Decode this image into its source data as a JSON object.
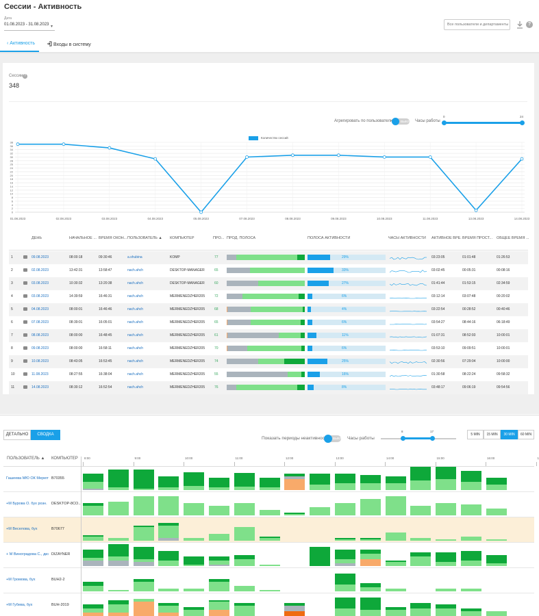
{
  "page": {
    "title": "Сессии - Активность"
  },
  "filters": {
    "date_label": "Дата",
    "date_value": "01.08.2023 - 31.08.2023",
    "users_placeholder": "Все пользователи и департаменты"
  },
  "tabs": [
    {
      "label": "Активность",
      "active": true
    },
    {
      "label": "Входы в систему",
      "active": false
    }
  ],
  "summary": {
    "sessions_label": "Сессии",
    "sessions_value": "348"
  },
  "chart_controls": {
    "aggregate_label": "Агрегировать по пользователю",
    "aggregate_toggle": "ВЫКЛ",
    "work_hours_label": "Часы работы",
    "hours_min": "0",
    "hours_max": "24"
  },
  "chart_data": {
    "type": "line",
    "series": [
      {
        "name": "Количество сессий",
        "color": "#1aa0e8",
        "values": [
          37,
          37,
          35,
          29,
          0,
          30,
          31,
          31,
          30,
          30,
          1,
          29
        ]
      }
    ],
    "categories": [
      "01.08.2023",
      "02.08.2023",
      "03.08.2023",
      "04.08.2023",
      "05.08.2023",
      "07.08.2023",
      "08.08.2023",
      "09.08.2023",
      "10.08.2023",
      "11.08.2023",
      "13.08.2023",
      "14.08.2023"
    ],
    "y_ticks": [
      "0",
      "2",
      "4",
      "6",
      "8",
      "10",
      "12",
      "14",
      "16",
      "18",
      "20",
      "22",
      "24",
      "26",
      "28",
      "30",
      "32",
      "34",
      "36",
      "38"
    ],
    "ylim": [
      0,
      38
    ],
    "grid": true,
    "legend": "top"
  },
  "table": {
    "headers": [
      "ДЕНЬ",
      "НАЧАЛЬНОЕ ...",
      "ВРЕМЯ ОКОН...",
      "ПОЛЬЗОВАТЕЛЬ ▲",
      "КОМПЬЮТЕР",
      "ПРО...",
      "ПРОД. ПОЛОСА",
      "ПОЛОСА АКТИВНОСТИ",
      "ЧАСЫ АКТИВНОСТИ",
      "АКТИВНОЕ ВРЕ...",
      "ВРЕМЯ ПРОСТ...",
      "ОБЩЕЕ ВРЕМЯ ..."
    ],
    "rows": [
      {
        "n": "1",
        "day": "09.08.2023",
        "start": "08:00:18",
        "end": "09:30:46",
        "user": "a.shubina",
        "pc": "KOMP",
        "prod": "77",
        "bar": [
          0,
          12,
          78,
          10
        ],
        "act": "29%",
        "actv": 29,
        "active": "03:23:05",
        "idle": "01:01:48",
        "total": "01:26:53"
      },
      {
        "n": "2",
        "day": "02.08.2023",
        "start": "13:42:31",
        "end": "13:58:47",
        "user": "nach.ahch",
        "pc": "DESKTOP-MANAGER",
        "prod": "65",
        "bar": [
          0,
          30,
          70,
          0
        ],
        "act": "33%",
        "actv": 33,
        "active": "03:02:45",
        "idle": "00:05:31",
        "total": "00:08:16"
      },
      {
        "n": "3",
        "day": "03.08.2023",
        "start": "10:30:32",
        "end": "13:20:38",
        "user": "nach.ahch",
        "pc": "DESKTOP-MANAGER",
        "prod": "60",
        "bar": [
          0,
          40,
          60,
          0
        ],
        "act": "27%",
        "actv": 27,
        "active": "01:41:44",
        "idle": "01:53:15",
        "total": "02:34:59"
      },
      {
        "n": "4",
        "day": "03.08.2023",
        "start": "14:39:59",
        "end": "16:46:31",
        "user": "nach.ahch",
        "pc": "MERMENEDZHER205",
        "prod": "72",
        "bar": [
          0,
          20,
          72,
          8
        ],
        "act": "6%",
        "actv": 6,
        "active": "03:12:14",
        "idle": "03:07:48",
        "total": "00:20:02"
      },
      {
        "n": "5",
        "day": "04.08.2023",
        "start": "08:00:01",
        "end": "16:46:46",
        "user": "nach.ahch",
        "pc": "MERMENEDZHER205",
        "prod": "68",
        "bar": [
          1,
          30,
          66,
          3
        ],
        "act": "4%",
        "actv": 4,
        "active": "03:22:54",
        "idle": "00:28:52",
        "total": "00:40:46"
      },
      {
        "n": "6",
        "day": "07.08.2023",
        "start": "08:39:01",
        "end": "16:05:01",
        "user": "nach.ahch",
        "pc": "MERMENEDZHER205",
        "prod": "65",
        "bar": [
          1,
          30,
          64,
          5
        ],
        "act": "6%",
        "actv": 6,
        "active": "03:54:27",
        "idle": "08:44:16",
        "total": "06:18:49"
      },
      {
        "n": "7",
        "day": "08.08.2023",
        "start": "08:00:00",
        "end": "16:48:45",
        "user": "nach.ahch",
        "pc": "MERMENEDZHER205",
        "prod": "61",
        "bar": [
          1,
          66,
          28,
          5
        ],
        "act": "11%",
        "actv": 11,
        "active": "01:07:31",
        "idle": "08:52:93",
        "total": "10:00:01"
      },
      {
        "n": "8",
        "day": "09.08.2023",
        "start": "08:00:00",
        "end": "16:58:11",
        "user": "nach.ahch",
        "pc": "MERMENEDZHER205",
        "prod": "70",
        "bar": [
          1,
          25,
          70,
          4
        ],
        "act": "6%",
        "actv": 6,
        "active": "03:53:10",
        "idle": "09:09:51",
        "total": "10:00:01"
      },
      {
        "n": "9",
        "day": "10.08.2023",
        "start": "08:43:05",
        "end": "16:53:45",
        "user": "nach.ahch",
        "pc": "MERMENEDZHER205",
        "prod": "74",
        "bar": [
          0,
          40,
          34,
          26
        ],
        "act": "25%",
        "actv": 25,
        "active": "02:30:56",
        "idle": "07:29:04",
        "total": "10:00:00"
      },
      {
        "n": "10",
        "day": "11.08.2023",
        "start": "08:27:55",
        "end": "16:38:04",
        "user": "nach.ahch",
        "pc": "MERMENEDZHER205",
        "prod": "55",
        "bar": [
          0,
          78,
          18,
          4
        ],
        "act": "16%",
        "actv": 16,
        "active": "01:30:58",
        "idle": "08:22:24",
        "total": "09:58:32"
      },
      {
        "n": "11",
        "day": "14.08.2023",
        "start": "08:30:12",
        "end": "16:52:54",
        "user": "nach.ahch",
        "pc": "MERMENEDZHER205",
        "prod": "76",
        "bar": [
          0,
          12,
          78,
          10
        ],
        "act": "8%",
        "actv": 8,
        "active": "03:48:17",
        "idle": "09:06:19",
        "total": "09:54:56"
      }
    ]
  },
  "bottom": {
    "detail_label": "ДЕТАЛЬНО",
    "summary_label": "СВОДКА",
    "inactive_label": "Показать периоды неактивности",
    "inactive_toggle": "ВЫКЛ",
    "work_hours_label": "Часы работы",
    "hours_from": "8",
    "hours_to": "17",
    "granularity": [
      "5 MIN",
      "15 MIN",
      "30 MIN",
      "60 MIN"
    ],
    "granularity_selected": "30 MIN",
    "col_user": "ПОЛЬЗОВАТЕЛЬ ▲",
    "col_pc": "КОМПЬЮТЕР",
    "time_ticks": [
      "8:00",
      "9:00",
      "10:00",
      "11:00",
      "12:00",
      "13:00",
      "14:00",
      "15:00",
      "16:00",
      "17:00"
    ],
    "rows": [
      {
        "user": "Гашеева МЮ ОК Мерепт",
        "pc": "B70355",
        "hl": false
      },
      {
        "user": "+М Бурова О. бух розн.",
        "pc": "DESKTOP-8CO...",
        "hl": false
      },
      {
        "user": "+М Веселова, бух",
        "pc": "B70677",
        "hl": true
      },
      {
        "user": "+ М Виноградова С., дизайнер",
        "pc": "DIZAYNER",
        "hl": false
      },
      {
        "user": "+М Громова, бух",
        "pc": "BUH2-2",
        "hl": false
      },
      {
        "user": "+М Губева, бух",
        "pc": "BUH-2019",
        "hl": false
      }
    ]
  },
  "colors": {
    "accent": "#1aa0e8",
    "productive": "#7fe08a",
    "productive_dark": "#0ea83a",
    "neutral": "#aab4bc",
    "unproductive": "#f8aa6a",
    "orange_dark": "#ef6b12"
  }
}
